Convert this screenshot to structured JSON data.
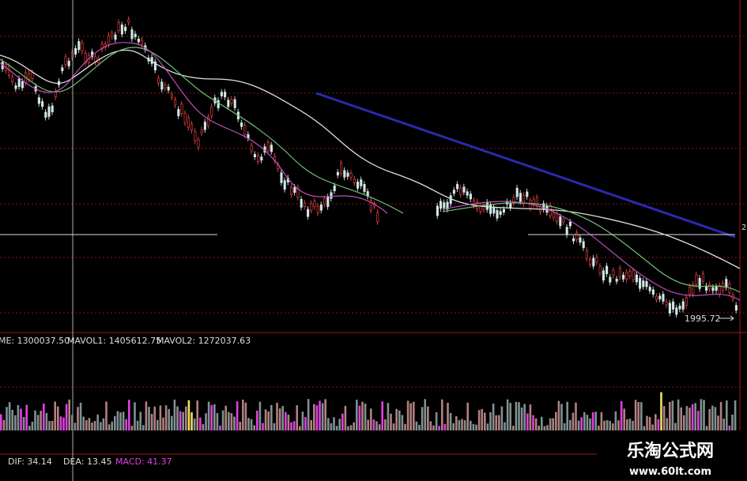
{
  "main": {
    "price_label": "1995.72",
    "axis_fragment": "2"
  },
  "volume": {
    "legend": [
      "ME: 1300037.50",
      "MAVOL1: 1405612.75",
      "MAVOL2: 1272037.63"
    ]
  },
  "macd": {
    "legend": [
      "DIF: 34.14",
      "DEA: 13.45",
      "MACD: 41.37"
    ]
  },
  "watermark": {
    "title": "乐淘公式网",
    "url": "www.60lt.com"
  }
}
